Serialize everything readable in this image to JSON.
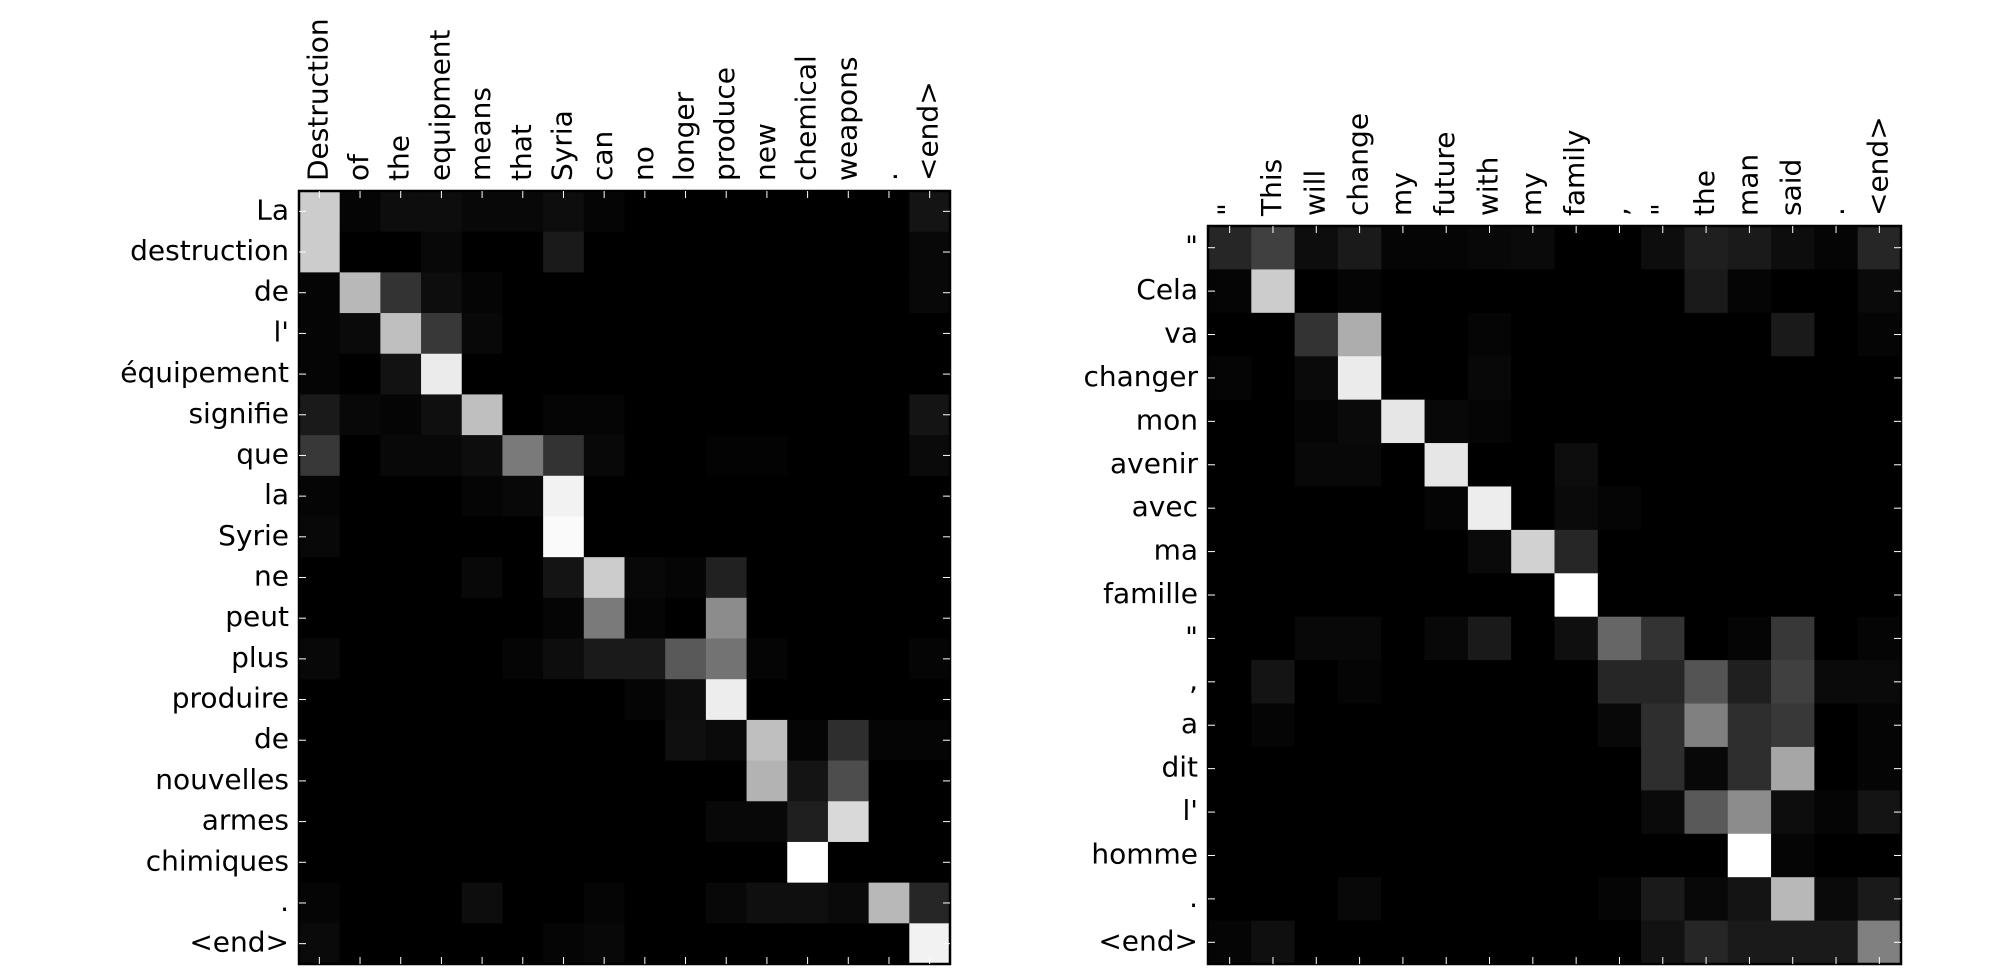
{
  "chart_data": [
    {
      "type": "heatmap",
      "colormap": "gray",
      "zlim": [
        0,
        1
      ],
      "categories": [
        "Destruction",
        "of",
        "the",
        "equipment",
        "means",
        "that",
        "Syria",
        "can",
        "no",
        "longer",
        "produce",
        "new",
        "chemical",
        "weapons",
        ".",
        "<end>"
      ],
      "row_categories": [
        "La",
        "destruction",
        "de",
        "l'",
        "équipement",
        "signifie",
        "que",
        "la",
        "Syrie",
        "ne",
        "peut",
        "plus",
        "produire",
        "de",
        "nouvelles",
        "armes",
        "chimiques",
        ".",
        "<end>"
      ],
      "values": [
        [
          0.8,
          0.02,
          0.05,
          0.05,
          0.03,
          0.03,
          0.05,
          0.02,
          0,
          0,
          0,
          0,
          0,
          0,
          0,
          0.08
        ],
        [
          0.8,
          0,
          0,
          0.03,
          0,
          0,
          0.1,
          0,
          0,
          0,
          0,
          0,
          0,
          0,
          0,
          0.03
        ],
        [
          0.02,
          0.72,
          0.2,
          0.05,
          0.02,
          0,
          0,
          0,
          0,
          0,
          0,
          0,
          0,
          0,
          0,
          0.03
        ],
        [
          0.02,
          0.04,
          0.75,
          0.22,
          0.03,
          0,
          0,
          0,
          0,
          0,
          0,
          0,
          0,
          0,
          0,
          0
        ],
        [
          0.02,
          0,
          0.07,
          0.92,
          0,
          0,
          0,
          0,
          0,
          0,
          0,
          0,
          0,
          0,
          0,
          0
        ],
        [
          0.1,
          0.03,
          0.02,
          0.06,
          0.75,
          0,
          0.02,
          0.02,
          0,
          0,
          0,
          0,
          0,
          0,
          0,
          0.08
        ],
        [
          0.22,
          0,
          0.03,
          0.03,
          0.05,
          0.48,
          0.2,
          0.03,
          0,
          0,
          0.01,
          0.01,
          0,
          0,
          0,
          0.04
        ],
        [
          0.02,
          0,
          0,
          0,
          0.02,
          0.03,
          0.95,
          0,
          0,
          0,
          0,
          0,
          0,
          0,
          0,
          0
        ],
        [
          0.03,
          0,
          0,
          0,
          0,
          0,
          0.98,
          0,
          0,
          0,
          0,
          0,
          0,
          0,
          0,
          0
        ],
        [
          0,
          0,
          0,
          0,
          0.03,
          0,
          0.08,
          0.8,
          0.03,
          0.02,
          0.13,
          0,
          0,
          0,
          0,
          0
        ],
        [
          0,
          0,
          0,
          0,
          0,
          0,
          0.02,
          0.48,
          0.02,
          0,
          0.55,
          0,
          0,
          0,
          0,
          0
        ],
        [
          0.03,
          0,
          0,
          0,
          0,
          0.02,
          0.05,
          0.1,
          0.1,
          0.35,
          0.45,
          0.02,
          0,
          0,
          0,
          0.02
        ],
        [
          0,
          0,
          0,
          0,
          0,
          0,
          0,
          0,
          0.02,
          0.05,
          0.93,
          0,
          0,
          0,
          0,
          0
        ],
        [
          0,
          0,
          0,
          0,
          0,
          0,
          0,
          0,
          0,
          0.06,
          0.04,
          0.75,
          0.02,
          0.18,
          0.02,
          0.02
        ],
        [
          0,
          0,
          0,
          0,
          0,
          0,
          0,
          0,
          0,
          0,
          0,
          0.7,
          0.08,
          0.3,
          0,
          0
        ],
        [
          0,
          0,
          0,
          0,
          0,
          0,
          0,
          0,
          0,
          0,
          0.03,
          0.03,
          0.12,
          0.85,
          0,
          0
        ],
        [
          0,
          0,
          0,
          0,
          0,
          0,
          0,
          0,
          0,
          0,
          0,
          0,
          1,
          0,
          0,
          0
        ],
        [
          0.02,
          0,
          0,
          0,
          0.05,
          0,
          0,
          0.02,
          0,
          0,
          0.03,
          0.06,
          0.06,
          0.04,
          0.72,
          0.15
        ],
        [
          0.04,
          0,
          0,
          0,
          0,
          0,
          0.02,
          0.03,
          0,
          0,
          0,
          0,
          0,
          0,
          0,
          0.95
        ]
      ]
    },
    {
      "type": "heatmap",
      "colormap": "gray",
      "zlim": [
        0,
        1
      ],
      "categories": [
        "\"",
        "This",
        "will",
        "change",
        "my",
        "future",
        "with",
        "my",
        "family",
        ",",
        "\"",
        "the",
        "man",
        "said",
        ".",
        "<end>"
      ],
      "row_categories": [
        "\"",
        "Cela",
        "va",
        "changer",
        "mon",
        "avenir",
        "avec",
        "ma",
        "famille",
        "\"",
        ",",
        "a",
        "dit",
        "l'",
        "homme",
        ".",
        "<end>"
      ],
      "values": [
        [
          0.15,
          0.25,
          0.05,
          0.1,
          0.02,
          0.02,
          0.03,
          0.04,
          0,
          0,
          0.05,
          0.12,
          0.1,
          0.05,
          0.02,
          0.15
        ],
        [
          0.02,
          0.8,
          0,
          0.02,
          0,
          0,
          0,
          0,
          0,
          0,
          0,
          0.1,
          0.02,
          0,
          0,
          0.04
        ],
        [
          0,
          0,
          0.2,
          0.68,
          0,
          0,
          0.02,
          0,
          0,
          0,
          0,
          0,
          0,
          0.1,
          0,
          0.02
        ],
        [
          0.02,
          0,
          0.04,
          0.92,
          0,
          0,
          0.03,
          0,
          0,
          0,
          0,
          0,
          0,
          0,
          0,
          0
        ],
        [
          0,
          0,
          0.02,
          0.04,
          0.9,
          0.03,
          0.02,
          0,
          0,
          0,
          0,
          0,
          0,
          0,
          0,
          0
        ],
        [
          0,
          0,
          0.03,
          0.03,
          0,
          0.9,
          0,
          0,
          0.05,
          0,
          0,
          0,
          0,
          0,
          0,
          0
        ],
        [
          0,
          0,
          0,
          0,
          0,
          0.02,
          0.93,
          0,
          0.04,
          0.02,
          0,
          0,
          0,
          0,
          0,
          0
        ],
        [
          0,
          0,
          0,
          0,
          0,
          0,
          0.04,
          0.82,
          0.15,
          0,
          0,
          0,
          0,
          0,
          0,
          0
        ],
        [
          0,
          0,
          0,
          0,
          0,
          0,
          0,
          0,
          1,
          0,
          0,
          0,
          0,
          0,
          0,
          0
        ],
        [
          0,
          0,
          0.03,
          0.03,
          0,
          0.03,
          0.1,
          0,
          0.06,
          0.4,
          0.2,
          0,
          0.02,
          0.22,
          0,
          0.02
        ],
        [
          0,
          0.08,
          0,
          0.02,
          0,
          0,
          0,
          0,
          0,
          0.15,
          0.15,
          0.33,
          0.12,
          0.25,
          0.04,
          0.04
        ],
        [
          0,
          0.02,
          0,
          0,
          0,
          0,
          0,
          0,
          0,
          0.03,
          0.18,
          0.5,
          0.18,
          0.22,
          0,
          0.02
        ],
        [
          0,
          0,
          0,
          0,
          0,
          0,
          0,
          0,
          0,
          0,
          0.18,
          0.03,
          0.18,
          0.65,
          0,
          0.02
        ],
        [
          0,
          0,
          0,
          0,
          0,
          0,
          0,
          0,
          0,
          0,
          0.04,
          0.35,
          0.55,
          0.05,
          0.02,
          0.08
        ],
        [
          0,
          0,
          0,
          0,
          0,
          0,
          0,
          0,
          0,
          0,
          0,
          0,
          1,
          0.02,
          0,
          0
        ],
        [
          0,
          0,
          0,
          0.03,
          0,
          0,
          0,
          0,
          0,
          0.02,
          0.1,
          0.03,
          0.08,
          0.72,
          0.04,
          0.1
        ],
        [
          0.02,
          0.06,
          0,
          0,
          0,
          0,
          0,
          0,
          0,
          0,
          0.07,
          0.15,
          0.1,
          0.1,
          0.1,
          0.5
        ]
      ]
    }
  ]
}
